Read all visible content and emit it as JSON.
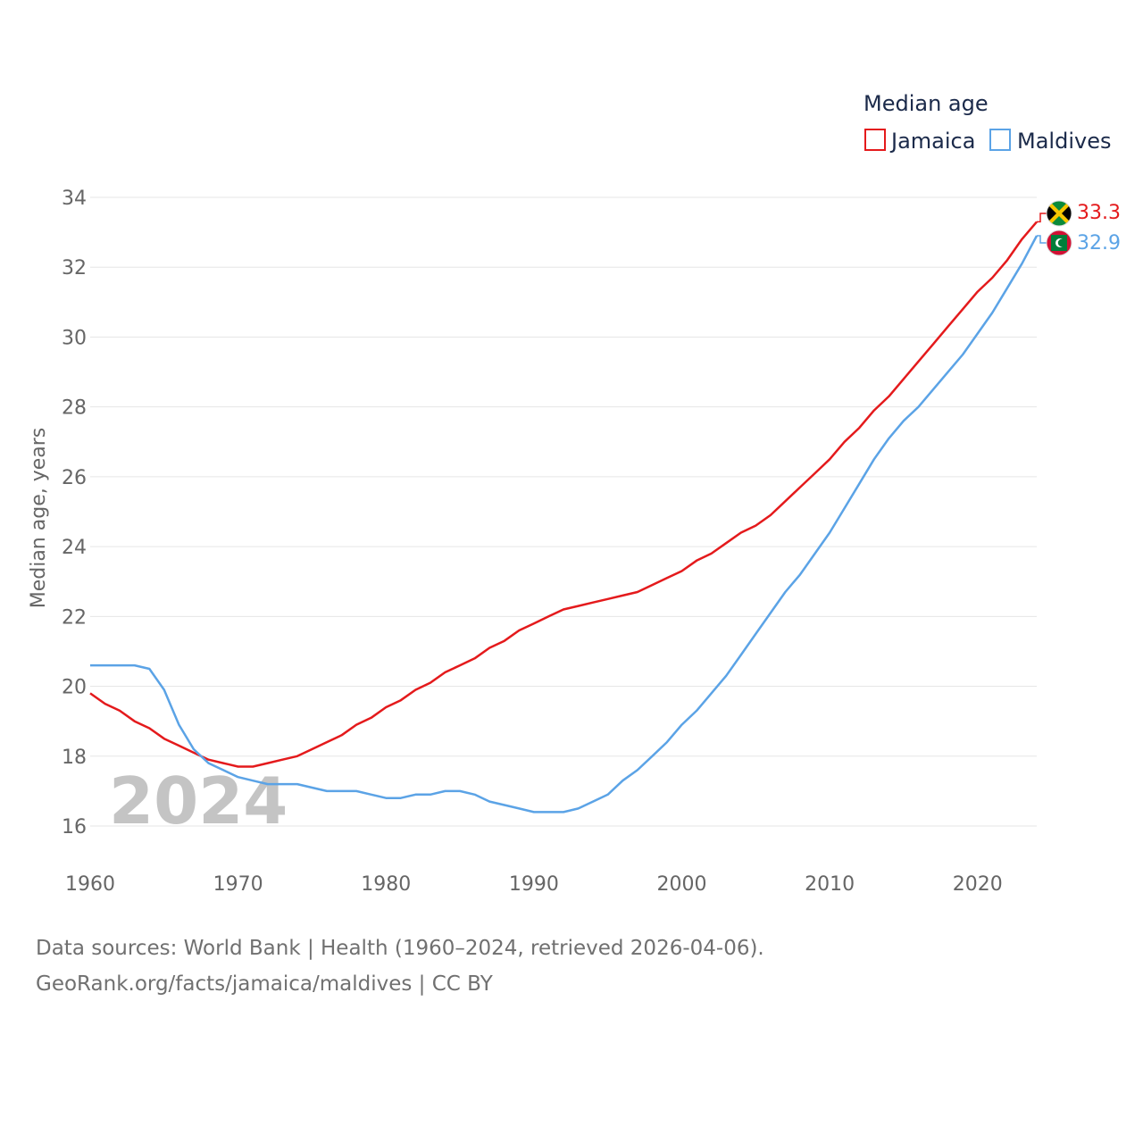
{
  "chart_data": {
    "type": "line",
    "title": "",
    "legend_title": "Median age",
    "xlabel": "",
    "ylabel": "Median age, years",
    "xlim": [
      1960,
      2024
    ],
    "ylim": [
      15.5,
      34.5
    ],
    "x_ticks": [
      "1960",
      "1970",
      "1980",
      "1990",
      "2000",
      "2010",
      "2020"
    ],
    "y_ticks": [
      "16",
      "18",
      "20",
      "22",
      "24",
      "26",
      "28",
      "30",
      "32",
      "34"
    ],
    "x_tick_values": [
      1960,
      1970,
      1980,
      1990,
      2000,
      2010,
      2020
    ],
    "y_tick_values": [
      16,
      18,
      20,
      22,
      24,
      26,
      28,
      30,
      32,
      34
    ],
    "current_year_label": "2024",
    "legend_position": "top-right",
    "grid": true,
    "x": [
      1960,
      1961,
      1962,
      1963,
      1964,
      1965,
      1966,
      1967,
      1968,
      1969,
      1970,
      1971,
      1972,
      1973,
      1974,
      1975,
      1976,
      1977,
      1978,
      1979,
      1980,
      1981,
      1982,
      1983,
      1984,
      1985,
      1986,
      1987,
      1988,
      1989,
      1990,
      1991,
      1992,
      1993,
      1994,
      1995,
      1996,
      1997,
      1998,
      1999,
      2000,
      2001,
      2002,
      2003,
      2004,
      2005,
      2006,
      2007,
      2008,
      2009,
      2010,
      2011,
      2012,
      2013,
      2014,
      2015,
      2016,
      2017,
      2018,
      2019,
      2020,
      2021,
      2022,
      2023,
      2024
    ],
    "series": [
      {
        "name": "Jamaica",
        "color": "#e41a1c",
        "flag": "jamaica-flag",
        "end_label": "33.3",
        "values": [
          19.8,
          19.5,
          19.3,
          19.0,
          18.8,
          18.5,
          18.3,
          18.1,
          17.9,
          17.8,
          17.7,
          17.7,
          17.8,
          17.9,
          18.0,
          18.2,
          18.4,
          18.6,
          18.9,
          19.1,
          19.4,
          19.6,
          19.9,
          20.1,
          20.4,
          20.6,
          20.8,
          21.1,
          21.3,
          21.6,
          21.8,
          22.0,
          22.2,
          22.3,
          22.4,
          22.5,
          22.6,
          22.7,
          22.9,
          23.1,
          23.3,
          23.6,
          23.8,
          24.1,
          24.4,
          24.6,
          24.9,
          25.3,
          25.7,
          26.1,
          26.5,
          27.0,
          27.4,
          27.9,
          28.3,
          28.8,
          29.3,
          29.8,
          30.3,
          30.8,
          31.3,
          31.7,
          32.2,
          32.8,
          33.3
        ]
      },
      {
        "name": "Maldives",
        "color": "#5ba3e6",
        "flag": "maldives-flag",
        "end_label": "32.9",
        "values": [
          20.6,
          20.6,
          20.6,
          20.6,
          20.5,
          19.9,
          18.9,
          18.2,
          17.8,
          17.6,
          17.4,
          17.3,
          17.2,
          17.2,
          17.2,
          17.1,
          17.0,
          17.0,
          17.0,
          16.9,
          16.8,
          16.8,
          16.9,
          16.9,
          17.0,
          17.0,
          16.9,
          16.7,
          16.6,
          16.5,
          16.4,
          16.4,
          16.4,
          16.5,
          16.7,
          16.9,
          17.3,
          17.6,
          18.0,
          18.4,
          18.9,
          19.3,
          19.8,
          20.3,
          20.9,
          21.5,
          22.1,
          22.7,
          23.2,
          23.8,
          24.4,
          25.1,
          25.8,
          26.5,
          27.1,
          27.6,
          28.0,
          28.5,
          29.0,
          29.5,
          30.1,
          30.7,
          31.4,
          32.1,
          32.9
        ]
      }
    ]
  },
  "footer": {
    "sources_line": "Data sources: World Bank | Health (1960–2024, retrieved 2026-04-06).",
    "credit_line": "GeoRank.org/facts/jamaica/maldives | CC BY"
  }
}
